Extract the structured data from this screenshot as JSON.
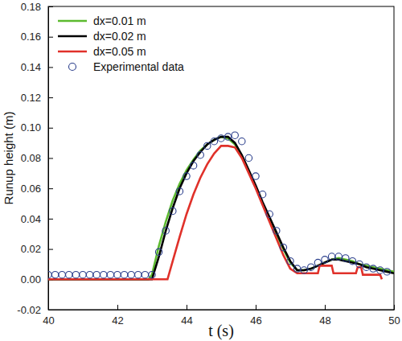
{
  "chart_data": {
    "type": "line",
    "xlabel": "t (s)",
    "ylabel": "Runup height (m)",
    "xlim": [
      40,
      50
    ],
    "xticks": [
      40,
      42,
      44,
      46,
      48,
      50
    ],
    "ylim": [
      -0.02,
      0.18
    ],
    "yticks": [
      {
        "value": -0.02,
        "label": "-0.02"
      },
      {
        "value": 0,
        "label": "0.00"
      },
      {
        "value": 0.02,
        "label": "0.02"
      },
      {
        "value": 0.04,
        "label": "0.04"
      },
      {
        "value": 0.06,
        "label": "0.06"
      },
      {
        "value": 0.08,
        "label": "0.08"
      },
      {
        "value": 0.1,
        "label": "0.10"
      },
      {
        "value": 0.12,
        "label": "0.12"
      },
      {
        "value": 0.14,
        "label": "0.14"
      },
      {
        "value": 0.16,
        "label": "0.16"
      },
      {
        "value": 0.18,
        "label": "0.18"
      }
    ],
    "legend": "upper left",
    "series": [
      {
        "name": "dx=0.01 m",
        "type": "line",
        "line_style": "solid",
        "color": "#5cba2f",
        "x": [
          40,
          42,
          42.9,
          43.0,
          43.2,
          43.4,
          43.6,
          43.8,
          44.0,
          44.2,
          44.4,
          44.6,
          44.8,
          45.0,
          45.2,
          45.4,
          45.6,
          45.8,
          46.0,
          46.2,
          46.4,
          46.6,
          46.8,
          47.0,
          47.2,
          47.4,
          47.6,
          47.8,
          48.0,
          48.2,
          48.4,
          48.6,
          48.8,
          49.0,
          49.2,
          49.4,
          49.6,
          49.8,
          50
        ],
        "values": [
          0,
          0,
          0,
          0.003,
          0.022,
          0.038,
          0.052,
          0.063,
          0.072,
          0.079,
          0.085,
          0.089,
          0.092,
          0.094,
          0.093,
          0.089,
          0.081,
          0.071,
          0.061,
          0.05,
          0.04,
          0.03,
          0.02,
          0.011,
          0.006,
          0.006,
          0.007,
          0.009,
          0.011,
          0.013,
          0.014,
          0.013,
          0.012,
          0.01,
          0.009,
          0.008,
          0.007,
          0.006,
          0.005
        ]
      },
      {
        "name": "dx=0.02 m",
        "type": "line",
        "line_style": "solid",
        "color": "#000000",
        "x": [
          40,
          42,
          42.9,
          43.0,
          43.2,
          43.4,
          43.6,
          43.8,
          44.0,
          44.2,
          44.4,
          44.6,
          44.8,
          45.0,
          45.2,
          45.4,
          45.6,
          45.8,
          46.0,
          46.2,
          46.4,
          46.6,
          46.8,
          47.0,
          47.2,
          47.4,
          47.6,
          47.8,
          48.0,
          48.2,
          48.4,
          48.6,
          48.8,
          49.0,
          49.2,
          49.4,
          49.6,
          49.8,
          50
        ],
        "values": [
          0,
          0,
          0,
          0,
          0.015,
          0.032,
          0.047,
          0.06,
          0.07,
          0.078,
          0.084,
          0.089,
          0.092,
          0.094,
          0.094,
          0.09,
          0.082,
          0.072,
          0.062,
          0.051,
          0.041,
          0.031,
          0.021,
          0.012,
          0.006,
          0.006,
          0.007,
          0.009,
          0.011,
          0.013,
          0.013,
          0.012,
          0.011,
          0.01,
          0.008,
          0.007,
          0.006,
          0.005,
          0.004
        ]
      },
      {
        "name": "dx=0.05 m",
        "type": "line",
        "line_style": "solid",
        "color": "#e0312a",
        "x": [
          40,
          43.45,
          43.6,
          43.8,
          44.0,
          44.2,
          44.4,
          44.6,
          44.8,
          45.0,
          45.2,
          45.4,
          45.6,
          45.8,
          46.0,
          46.2,
          46.4,
          46.6,
          46.8,
          47.0,
          47.2,
          47.8,
          47.85,
          48.2,
          48.25,
          48.9,
          48.95,
          49.05,
          49.1,
          49.6,
          49.65
        ],
        "values": [
          0,
          0,
          0.012,
          0.028,
          0.043,
          0.056,
          0.067,
          0.076,
          0.083,
          0.088,
          0.088,
          0.087,
          0.08,
          0.07,
          0.06,
          0.049,
          0.038,
          0.027,
          0.016,
          0.007,
          0.004,
          0.004,
          0.009,
          0.009,
          0.004,
          0.004,
          0.008,
          0.008,
          0.003,
          0.003,
          0
        ]
      },
      {
        "name": "Experimental data",
        "type": "scatter",
        "marker": "circle",
        "color": "#2b3f8c",
        "x": [
          40.0,
          40.2,
          40.4,
          40.6,
          40.8,
          41.0,
          41.2,
          41.4,
          41.6,
          41.8,
          42.0,
          42.2,
          42.4,
          42.6,
          42.8,
          43.0,
          43.2,
          43.4,
          43.6,
          43.8,
          44.0,
          44.2,
          44.4,
          44.6,
          44.8,
          45.0,
          45.2,
          45.4,
          45.6,
          45.8,
          46.0,
          46.2,
          46.4,
          46.6,
          46.8,
          47.0,
          47.2,
          47.4,
          47.6,
          47.8,
          48.0,
          48.2,
          48.4,
          48.6,
          48.8,
          49.0,
          49.2,
          49.4,
          49.6,
          49.8
        ],
        "values": [
          0.003,
          0.003,
          0.003,
          0.003,
          0.003,
          0.003,
          0.003,
          0.003,
          0.003,
          0.003,
          0.003,
          0.003,
          0.003,
          0.003,
          0.003,
          0.003,
          0.018,
          0.032,
          0.045,
          0.058,
          0.068,
          0.075,
          0.082,
          0.088,
          0.091,
          0.093,
          0.094,
          0.095,
          0.091,
          0.08,
          0.068,
          0.056,
          0.043,
          0.032,
          0.021,
          0.012,
          0.007,
          0.006,
          0.008,
          0.011,
          0.013,
          0.015,
          0.015,
          0.014,
          0.012,
          0.01,
          0.008,
          0.007,
          0.006,
          0.005
        ]
      }
    ]
  }
}
